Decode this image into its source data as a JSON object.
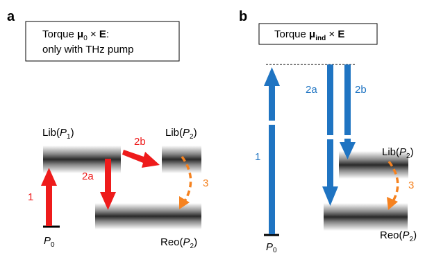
{
  "colors": {
    "red": "#ee1b1b",
    "blue": "#1f74c2",
    "orange": "#f58220",
    "black": "#000000"
  },
  "panel_a": {
    "letter": "a",
    "box_line1_prefix": "Torque ",
    "box_mu": "μ",
    "box_mu_sub": "0",
    "box_line1_op": " × ",
    "box_E": "E",
    "box_colon": ":",
    "box_line2": "only with THz pump",
    "levels": {
      "lib1_prefix": "Lib(",
      "lib1_var": "P",
      "lib1_sub": "1",
      "lib1_suffix": ")",
      "lib2_prefix": "Lib(",
      "lib2_var": "P",
      "lib2_sub": "2",
      "lib2_suffix": ")",
      "reo2_prefix": "Reo(",
      "reo2_var": "P",
      "reo2_sub": "2",
      "reo2_suffix": ")",
      "p0_var": "P",
      "p0_sub": "0"
    },
    "arrows": {
      "a1": "1",
      "a2a": "2a",
      "a2b": "2b",
      "a3": "3"
    }
  },
  "panel_b": {
    "letter": "b",
    "box_line1_prefix": "Torque ",
    "box_mu": "μ",
    "box_mu_sub": "ind",
    "box_line1_op": " × ",
    "box_E": "E",
    "levels": {
      "lib2_prefix": "Lib(",
      "lib2_var": "P",
      "lib2_sub": "2",
      "lib2_suffix": ")",
      "reo2_prefix": "Reo(",
      "reo2_var": "P",
      "reo2_sub": "2",
      "reo2_suffix": ")",
      "p0_var": "P",
      "p0_sub": "0"
    },
    "arrows": {
      "b1": "1",
      "b2a": "2a",
      "b2b": "2b",
      "b3": "3"
    }
  }
}
